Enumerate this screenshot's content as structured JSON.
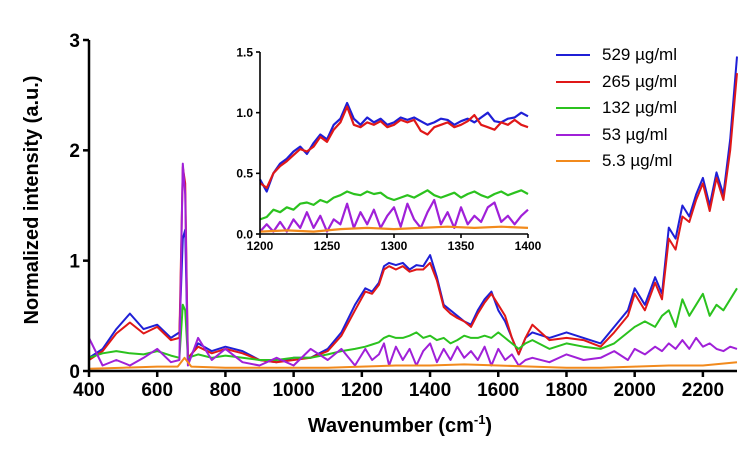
{
  "chart_data": {
    "type": "line",
    "xlabel": "Wavenumber (cm",
    "xlabel_sup": "-1",
    "xlabel_end": ")",
    "ylabel": "Normalized intensity (a.u.)",
    "xlim": [
      400,
      2300
    ],
    "ylim": [
      0,
      3
    ],
    "x_ticks": [
      "400",
      "600",
      "800",
      "1000",
      "1200",
      "1400",
      "1600",
      "1800",
      "2000",
      "2200"
    ],
    "y_ticks": [
      "0",
      "1",
      "2",
      "3"
    ],
    "grid": false,
    "legend_position": "top-right",
    "series": [
      {
        "name": "529 µg/ml",
        "color": "#1f1fd6",
        "x": [
          400,
          440,
          480,
          520,
          560,
          600,
          640,
          665,
          675,
          682,
          690,
          720,
          760,
          800,
          850,
          900,
          950,
          1000,
          1050,
          1100,
          1140,
          1180,
          1210,
          1230,
          1250,
          1265,
          1280,
          1300,
          1320,
          1340,
          1360,
          1380,
          1400,
          1420,
          1440,
          1460,
          1480,
          1500,
          1520,
          1540,
          1560,
          1580,
          1600,
          1620,
          1640,
          1660,
          1680,
          1700,
          1750,
          1800,
          1850,
          1900,
          1940,
          1980,
          2000,
          2030,
          2060,
          2080,
          2100,
          2120,
          2140,
          2160,
          2180,
          2200,
          2220,
          2240,
          2260,
          2280,
          2300
        ],
        "y": [
          0.12,
          0.2,
          0.38,
          0.52,
          0.38,
          0.42,
          0.3,
          0.35,
          1.2,
          1.28,
          0.1,
          0.25,
          0.18,
          0.22,
          0.18,
          0.1,
          0.08,
          0.12,
          0.12,
          0.2,
          0.35,
          0.6,
          0.75,
          0.72,
          0.8,
          0.95,
          0.98,
          0.96,
          0.98,
          0.92,
          0.96,
          0.95,
          1.05,
          0.85,
          0.6,
          0.55,
          0.5,
          0.45,
          0.42,
          0.55,
          0.65,
          0.72,
          0.55,
          0.45,
          0.3,
          0.15,
          0.3,
          0.35,
          0.3,
          0.35,
          0.3,
          0.25,
          0.4,
          0.55,
          0.75,
          0.6,
          0.85,
          0.7,
          1.3,
          1.2,
          1.5,
          1.4,
          1.6,
          1.75,
          1.5,
          1.8,
          1.6,
          2.1,
          2.85
        ]
      },
      {
        "name": "265 µg/ml",
        "color": "#e01818",
        "x": [
          400,
          440,
          480,
          520,
          560,
          600,
          640,
          665,
          675,
          682,
          690,
          720,
          760,
          800,
          850,
          900,
          950,
          1000,
          1050,
          1100,
          1140,
          1180,
          1210,
          1230,
          1250,
          1265,
          1280,
          1300,
          1320,
          1340,
          1360,
          1380,
          1400,
          1420,
          1440,
          1460,
          1480,
          1500,
          1520,
          1540,
          1560,
          1580,
          1600,
          1620,
          1640,
          1660,
          1680,
          1700,
          1750,
          1800,
          1850,
          1900,
          1940,
          1980,
          2000,
          2030,
          2060,
          2080,
          2100,
          2120,
          2140,
          2160,
          2180,
          2200,
          2220,
          2240,
          2260,
          2280,
          2300
        ],
        "y": [
          0.1,
          0.18,
          0.34,
          0.44,
          0.34,
          0.4,
          0.28,
          0.3,
          1.85,
          1.7,
          0.12,
          0.22,
          0.16,
          0.2,
          0.16,
          0.1,
          0.08,
          0.1,
          0.12,
          0.18,
          0.32,
          0.55,
          0.72,
          0.7,
          0.78,
          0.92,
          0.95,
          0.92,
          0.95,
          0.9,
          0.92,
          0.92,
          0.98,
          0.82,
          0.58,
          0.52,
          0.48,
          0.45,
          0.4,
          0.52,
          0.62,
          0.7,
          0.6,
          0.5,
          0.3,
          0.15,
          0.3,
          0.42,
          0.28,
          0.3,
          0.28,
          0.22,
          0.35,
          0.5,
          0.7,
          0.55,
          0.8,
          0.65,
          1.2,
          1.1,
          1.4,
          1.35,
          1.55,
          1.7,
          1.45,
          1.75,
          1.55,
          2.0,
          2.7
        ]
      },
      {
        "name": "132 µg/ml",
        "color": "#2bc21e",
        "x": [
          400,
          440,
          480,
          520,
          560,
          600,
          640,
          665,
          675,
          682,
          690,
          720,
          760,
          800,
          850,
          900,
          950,
          1000,
          1050,
          1100,
          1140,
          1180,
          1210,
          1230,
          1250,
          1265,
          1280,
          1300,
          1320,
          1340,
          1360,
          1380,
          1400,
          1420,
          1440,
          1460,
          1480,
          1500,
          1520,
          1540,
          1560,
          1580,
          1600,
          1620,
          1640,
          1660,
          1680,
          1700,
          1750,
          1800,
          1850,
          1900,
          1940,
          1980,
          2000,
          2030,
          2060,
          2080,
          2100,
          2120,
          2140,
          2160,
          2180,
          2200,
          2220,
          2240,
          2260,
          2280,
          2300
        ],
        "y": [
          0.12,
          0.16,
          0.18,
          0.16,
          0.15,
          0.18,
          0.14,
          0.12,
          0.6,
          0.55,
          0.12,
          0.15,
          0.12,
          0.14,
          0.12,
          0.1,
          0.1,
          0.12,
          0.12,
          0.15,
          0.18,
          0.2,
          0.22,
          0.24,
          0.26,
          0.3,
          0.32,
          0.3,
          0.3,
          0.32,
          0.35,
          0.3,
          0.32,
          0.28,
          0.3,
          0.25,
          0.28,
          0.32,
          0.3,
          0.3,
          0.32,
          0.3,
          0.35,
          0.3,
          0.25,
          0.2,
          0.25,
          0.28,
          0.2,
          0.25,
          0.22,
          0.2,
          0.25,
          0.35,
          0.4,
          0.45,
          0.4,
          0.5,
          0.55,
          0.4,
          0.65,
          0.5,
          0.6,
          0.7,
          0.5,
          0.6,
          0.55,
          0.65,
          0.75
        ]
      },
      {
        "name": "53 µg/ml",
        "color": "#a020d8",
        "x": [
          400,
          440,
          480,
          520,
          560,
          600,
          640,
          665,
          675,
          682,
          690,
          720,
          760,
          800,
          850,
          900,
          950,
          1000,
          1050,
          1100,
          1140,
          1180,
          1210,
          1230,
          1250,
          1265,
          1280,
          1300,
          1320,
          1340,
          1360,
          1380,
          1400,
          1420,
          1440,
          1460,
          1480,
          1500,
          1520,
          1540,
          1560,
          1580,
          1600,
          1620,
          1640,
          1660,
          1680,
          1700,
          1750,
          1800,
          1850,
          1900,
          1940,
          1980,
          2000,
          2030,
          2060,
          2080,
          2100,
          2120,
          2140,
          2160,
          2180,
          2200,
          2220,
          2240,
          2260,
          2280,
          2300
        ],
        "y": [
          0.3,
          0.05,
          0.1,
          0.05,
          0.12,
          0.2,
          0.08,
          0.1,
          1.88,
          1.6,
          0.05,
          0.3,
          0.1,
          0.2,
          0.08,
          0.05,
          0.12,
          0.05,
          0.2,
          0.1,
          0.2,
          0.05,
          0.2,
          0.1,
          0.15,
          0.25,
          0.05,
          0.22,
          0.1,
          0.2,
          0.05,
          0.18,
          0.25,
          0.08,
          0.2,
          0.1,
          0.22,
          0.12,
          0.18,
          0.1,
          0.22,
          0.05,
          0.2,
          0.1,
          0.15,
          0.05,
          0.1,
          0.12,
          0.08,
          0.15,
          0.1,
          0.12,
          0.18,
          0.1,
          0.2,
          0.15,
          0.22,
          0.18,
          0.25,
          0.2,
          0.28,
          0.2,
          0.3,
          0.22,
          0.25,
          0.2,
          0.18,
          0.22,
          0.2
        ]
      },
      {
        "name": "5.3 µg/ml",
        "color": "#f28a1c",
        "x": [
          400,
          500,
          600,
          660,
          680,
          700,
          800,
          900,
          1000,
          1100,
          1200,
          1300,
          1400,
          1500,
          1600,
          1700,
          1800,
          1900,
          2000,
          2100,
          2200,
          2300
        ],
        "y": [
          0.02,
          0.03,
          0.04,
          0.04,
          0.12,
          0.04,
          0.03,
          0.03,
          0.03,
          0.03,
          0.04,
          0.05,
          0.05,
          0.06,
          0.05,
          0.04,
          0.03,
          0.03,
          0.04,
          0.05,
          0.05,
          0.08
        ]
      }
    ],
    "inset": {
      "xlim": [
        1200,
        1400
      ],
      "ylim": [
        0,
        1.5
      ],
      "x_ticks": [
        "1200",
        "1250",
        "1300",
        "1350",
        "1400"
      ],
      "y_ticks": [
        "0.0",
        "0.5",
        "1.0",
        "1.5"
      ],
      "series": [
        {
          "name": "529 µg/ml",
          "color": "#1f1fd6",
          "x": [
            1200,
            1205,
            1210,
            1215,
            1220,
            1225,
            1230,
            1235,
            1240,
            1245,
            1250,
            1255,
            1260,
            1265,
            1270,
            1275,
            1280,
            1285,
            1290,
            1295,
            1300,
            1305,
            1310,
            1315,
            1320,
            1325,
            1330,
            1335,
            1340,
            1345,
            1350,
            1355,
            1360,
            1365,
            1370,
            1375,
            1380,
            1385,
            1390,
            1395,
            1400
          ],
          "y": [
            0.45,
            0.35,
            0.5,
            0.58,
            0.62,
            0.68,
            0.72,
            0.66,
            0.75,
            0.82,
            0.78,
            0.9,
            0.95,
            1.08,
            0.95,
            0.9,
            0.96,
            0.92,
            0.95,
            0.9,
            0.92,
            0.96,
            0.94,
            0.96,
            0.93,
            0.9,
            0.92,
            0.95,
            0.94,
            0.9,
            0.93,
            0.95,
            0.92,
            0.96,
            1.0,
            0.93,
            0.92,
            0.95,
            0.96,
            1.0,
            0.97
          ]
        },
        {
          "name": "265 µg/ml",
          "color": "#e01818",
          "x": [
            1200,
            1205,
            1210,
            1215,
            1220,
            1225,
            1230,
            1235,
            1240,
            1245,
            1250,
            1255,
            1260,
            1265,
            1270,
            1275,
            1280,
            1285,
            1290,
            1295,
            1300,
            1305,
            1310,
            1315,
            1320,
            1325,
            1330,
            1335,
            1340,
            1345,
            1350,
            1355,
            1360,
            1365,
            1370,
            1375,
            1380,
            1385,
            1390,
            1395,
            1400
          ],
          "y": [
            0.42,
            0.38,
            0.5,
            0.56,
            0.6,
            0.65,
            0.7,
            0.68,
            0.72,
            0.8,
            0.76,
            0.86,
            0.92,
            1.05,
            0.9,
            0.88,
            0.92,
            0.9,
            0.93,
            0.88,
            0.9,
            0.94,
            0.92,
            0.94,
            0.85,
            0.82,
            0.88,
            0.9,
            0.92,
            0.88,
            0.9,
            0.93,
            0.98,
            0.9,
            0.88,
            0.86,
            0.92,
            0.9,
            0.94,
            0.9,
            0.88
          ]
        },
        {
          "name": "132 µg/ml",
          "color": "#2bc21e",
          "x": [
            1200,
            1205,
            1210,
            1215,
            1220,
            1225,
            1230,
            1235,
            1240,
            1245,
            1250,
            1255,
            1260,
            1265,
            1270,
            1275,
            1280,
            1285,
            1290,
            1295,
            1300,
            1305,
            1310,
            1315,
            1320,
            1325,
            1330,
            1335,
            1340,
            1345,
            1350,
            1355,
            1360,
            1365,
            1370,
            1375,
            1380,
            1385,
            1390,
            1395,
            1400
          ],
          "y": [
            0.12,
            0.14,
            0.2,
            0.18,
            0.22,
            0.2,
            0.25,
            0.26,
            0.24,
            0.28,
            0.26,
            0.3,
            0.32,
            0.35,
            0.33,
            0.32,
            0.35,
            0.33,
            0.34,
            0.3,
            0.28,
            0.3,
            0.32,
            0.3,
            0.33,
            0.36,
            0.32,
            0.3,
            0.32,
            0.34,
            0.3,
            0.33,
            0.35,
            0.32,
            0.3,
            0.33,
            0.35,
            0.32,
            0.34,
            0.36,
            0.33
          ]
        },
        {
          "name": "53 µg/ml",
          "color": "#a020d8",
          "x": [
            1200,
            1205,
            1210,
            1215,
            1220,
            1225,
            1230,
            1235,
            1240,
            1245,
            1250,
            1255,
            1260,
            1265,
            1270,
            1275,
            1280,
            1285,
            1290,
            1295,
            1300,
            1305,
            1310,
            1315,
            1320,
            1325,
            1330,
            1335,
            1340,
            1345,
            1350,
            1355,
            1360,
            1365,
            1370,
            1375,
            1380,
            1385,
            1390,
            1395,
            1400
          ],
          "y": [
            0.02,
            0.08,
            0.02,
            0.1,
            0.02,
            0.12,
            0.05,
            0.18,
            0.05,
            0.15,
            0.02,
            0.12,
            0.08,
            0.25,
            0.05,
            0.18,
            0.08,
            0.2,
            0.05,
            0.15,
            0.22,
            0.06,
            0.25,
            0.12,
            0.05,
            0.18,
            0.28,
            0.08,
            0.18,
            0.05,
            0.22,
            0.08,
            0.15,
            0.1,
            0.22,
            0.26,
            0.1,
            0.15,
            0.08,
            0.15,
            0.2
          ]
        },
        {
          "name": "5.3 µg/ml",
          "color": "#f28a1c",
          "x": [
            1200,
            1220,
            1240,
            1260,
            1280,
            1300,
            1320,
            1340,
            1360,
            1380,
            1400
          ],
          "y": [
            0.02,
            0.03,
            0.02,
            0.04,
            0.05,
            0.04,
            0.05,
            0.06,
            0.05,
            0.06,
            0.05
          ]
        }
      ]
    }
  }
}
